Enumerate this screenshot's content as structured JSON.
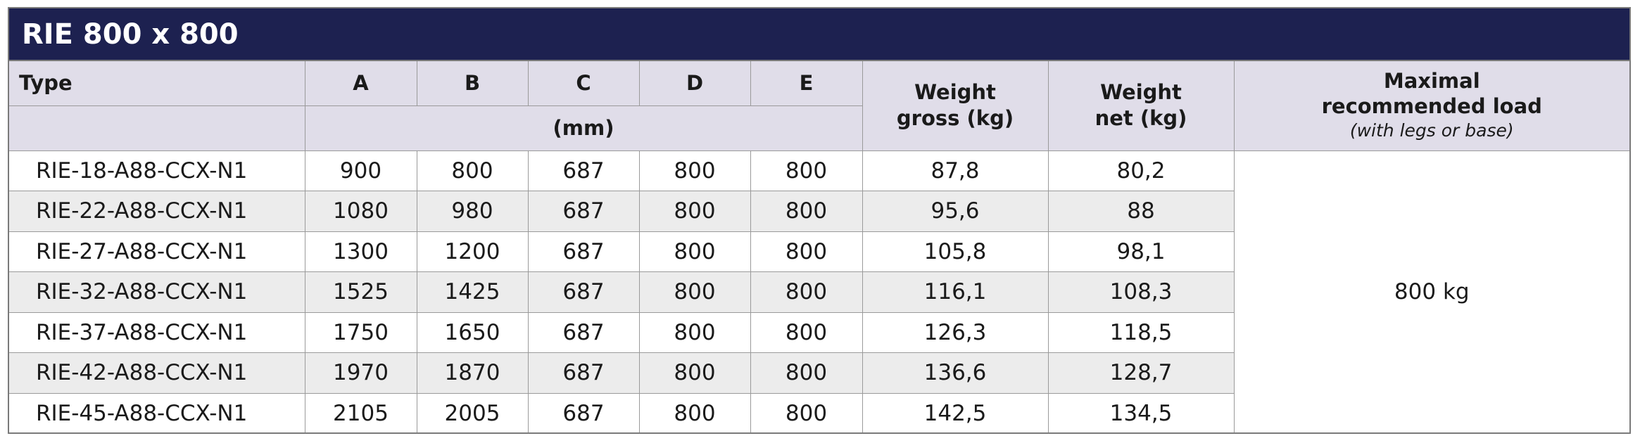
{
  "title": "RIE 800 x 800",
  "headers": {
    "type": "Type",
    "a": "A",
    "b": "B",
    "c": "C",
    "d": "D",
    "e": "E",
    "unit": "(mm)",
    "weight_gross_line1": "Weight",
    "weight_gross_line2": "gross (kg)",
    "weight_net_line1": "Weight",
    "weight_net_line2": "net (kg)",
    "max_load_line1": "Maximal",
    "max_load_line2": "recommended load",
    "max_load_note": "(with legs or base)"
  },
  "rows": [
    {
      "type": "RIE-18-A88-CCX-N1",
      "a": "900",
      "b": "800",
      "c": "687",
      "d": "800",
      "e": "800",
      "gross": "87,8",
      "net": "80,2"
    },
    {
      "type": "RIE-22-A88-CCX-N1",
      "a": "1080",
      "b": "980",
      "c": "687",
      "d": "800",
      "e": "800",
      "gross": "95,6",
      "net": "88"
    },
    {
      "type": "RIE-27-A88-CCX-N1",
      "a": "1300",
      "b": "1200",
      "c": "687",
      "d": "800",
      "e": "800",
      "gross": "105,8",
      "net": "98,1"
    },
    {
      "type": "RIE-32-A88-CCX-N1",
      "a": "1525",
      "b": "1425",
      "c": "687",
      "d": "800",
      "e": "800",
      "gross": "116,1",
      "net": "108,3"
    },
    {
      "type": "RIE-37-A88-CCX-N1",
      "a": "1750",
      "b": "1650",
      "c": "687",
      "d": "800",
      "e": "800",
      "gross": "126,3",
      "net": "118,5"
    },
    {
      "type": "RIE-42-A88-CCX-N1",
      "a": "1970",
      "b": "1870",
      "c": "687",
      "d": "800",
      "e": "800",
      "gross": "136,6",
      "net": "128,7"
    },
    {
      "type": "RIE-45-A88-CCX-N1",
      "a": "2105",
      "b": "2005",
      "c": "687",
      "d": "800",
      "e": "800",
      "gross": "142,5",
      "net": "134,5"
    }
  ],
  "max_load": "800 kg",
  "colors": {
    "title_bg": "#1d2150",
    "header_bg": "#e0dde9",
    "alt_row_bg": "#ececec"
  }
}
